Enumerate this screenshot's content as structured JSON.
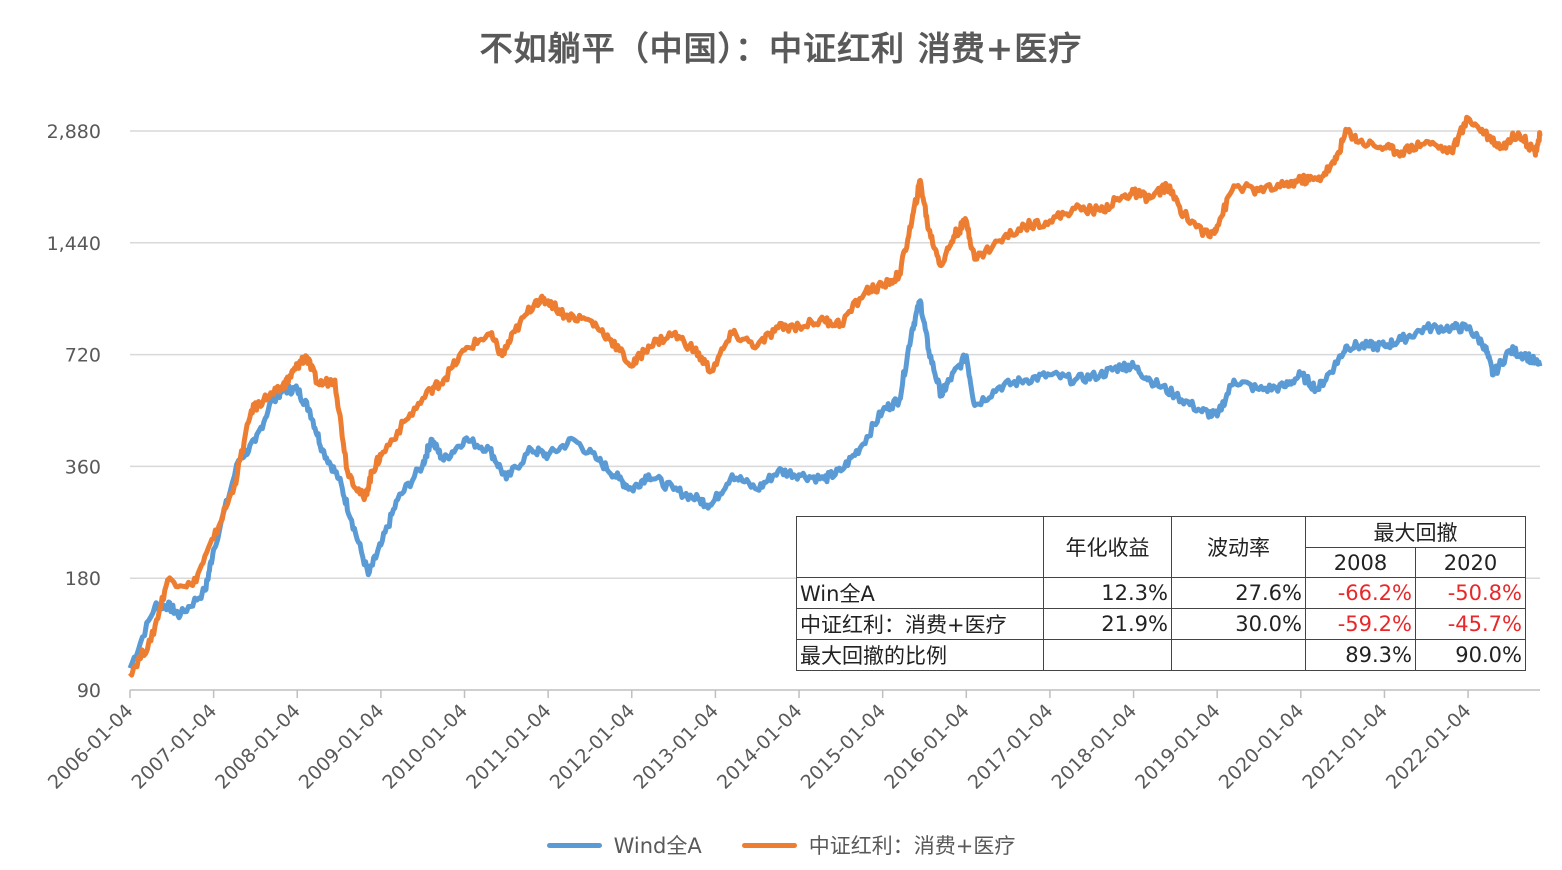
{
  "chart_data": {
    "type": "line",
    "title": "不如躺平（中国）：中证红利 消费+医疗",
    "y_scale": "log2",
    "ylim": [
      90,
      2880
    ],
    "yticks": [
      90,
      180,
      360,
      720,
      1440,
      2880
    ],
    "ytick_labels": [
      "90",
      "180",
      "360",
      "720",
      "1,440",
      "2,880"
    ],
    "xlim": [
      2006.0,
      2022.86
    ],
    "xticks": [
      2006,
      2007,
      2008,
      2009,
      2010,
      2011,
      2012,
      2013,
      2014,
      2015,
      2016,
      2017,
      2018,
      2019,
      2020,
      2021,
      2022
    ],
    "xtick_labels": [
      "2006-01-04",
      "2007-01-04",
      "2008-01-04",
      "2009-01-04",
      "2010-01-04",
      "2011-01-04",
      "2012-01-04",
      "2013-01-04",
      "2014-01-04",
      "2015-01-04",
      "2016-01-04",
      "2017-01-04",
      "2018-01-04",
      "2019-01-04",
      "2020-01-04",
      "2021-01-04",
      "2022-01-04"
    ],
    "grid": true,
    "legend_position": "bottom",
    "series": [
      {
        "name": "Wind全A",
        "color": "#5b9bd5",
        "x": [
          2006.0,
          2006.3,
          2006.45,
          2006.6,
          2006.9,
          2007.0,
          2007.3,
          2007.5,
          2007.7,
          2007.85,
          2008.0,
          2008.15,
          2008.3,
          2008.5,
          2008.65,
          2008.85,
          2009.0,
          2009.2,
          2009.5,
          2009.6,
          2009.75,
          2010.0,
          2010.3,
          2010.5,
          2010.8,
          2011.0,
          2011.3,
          2011.6,
          2011.85,
          2012.0,
          2012.2,
          2012.5,
          2012.8,
          2012.95,
          2013.2,
          2013.5,
          2013.75,
          2014.0,
          2014.3,
          2014.5,
          2014.75,
          2015.0,
          2015.2,
          2015.35,
          2015.45,
          2015.55,
          2015.7,
          2015.8,
          2016.0,
          2016.1,
          2016.4,
          2016.7,
          2017.0,
          2017.3,
          2017.6,
          2017.85,
          2018.0,
          2018.2,
          2018.5,
          2018.8,
          2019.0,
          2019.2,
          2019.5,
          2019.8,
          2020.0,
          2020.2,
          2020.4,
          2020.55,
          2020.8,
          2021.0,
          2021.2,
          2021.5,
          2021.8,
          2022.0,
          2022.2,
          2022.3,
          2022.5,
          2022.7,
          2022.86
        ],
        "values": [
          103,
          152,
          152,
          143,
          167,
          215,
          374,
          420,
          545,
          580,
          580,
          509,
          400,
          333,
          258,
          184,
          221,
          293,
          363,
          426,
          374,
          426,
          400,
          333,
          400,
          385,
          426,
          374,
          333,
          312,
          342,
          312,
          293,
          283,
          342,
          312,
          350,
          342,
          333,
          350,
          410,
          509,
          545,
          838,
          1005,
          740,
          560,
          615,
          715,
          525,
          590,
          615,
          635,
          615,
          635,
          670,
          670,
          615,
          560,
          509,
          492,
          615,
          580,
          590,
          635,
          580,
          670,
          760,
          760,
          760,
          790,
          850,
          850,
          850,
          760,
          635,
          740,
          715,
          670
        ]
      },
      {
        "name": "中证红利：消费+医疗",
        "color": "#ed7d31",
        "x": [
          2006.0,
          2006.25,
          2006.45,
          2006.75,
          2007.0,
          2007.25,
          2007.45,
          2007.6,
          2007.8,
          2007.9,
          2008.0,
          2008.1,
          2008.25,
          2008.45,
          2008.6,
          2008.8,
          2008.9,
          2009.0,
          2009.3,
          2009.6,
          2009.75,
          2010.0,
          2010.3,
          2010.45,
          2010.6,
          2010.85,
          2011.0,
          2011.2,
          2011.5,
          2011.75,
          2012.0,
          2012.2,
          2012.5,
          2012.75,
          2012.95,
          2013.2,
          2013.5,
          2013.75,
          2014.0,
          2014.3,
          2014.5,
          2014.8,
          2015.0,
          2015.2,
          2015.35,
          2015.45,
          2015.55,
          2015.7,
          2015.85,
          2016.0,
          2016.1,
          2016.4,
          2016.7,
          2017.0,
          2017.3,
          2017.6,
          2017.85,
          2018.0,
          2018.2,
          2018.4,
          2018.6,
          2018.9,
          2019.0,
          2019.2,
          2019.5,
          2019.8,
          2020.0,
          2020.2,
          2020.4,
          2020.55,
          2020.7,
          2021.0,
          2021.2,
          2021.5,
          2021.8,
          2022.0,
          2022.2,
          2022.4,
          2022.6,
          2022.8,
          2022.86
        ],
        "values": [
          100,
          122,
          178,
          172,
          230,
          320,
          509,
          545,
          580,
          620,
          670,
          715,
          600,
          615,
          350,
          293,
          350,
          385,
          480,
          580,
          615,
          740,
          820,
          715,
          830,
          1005,
          1005,
          920,
          890,
          790,
          670,
          760,
          820,
          740,
          650,
          820,
          760,
          850,
          860,
          890,
          870,
          1070,
          1100,
          1180,
          1650,
          2120,
          1560,
          1250,
          1500,
          1650,
          1300,
          1460,
          1600,
          1650,
          1780,
          1760,
          1900,
          1960,
          1900,
          2050,
          1720,
          1500,
          1600,
          2050,
          1990,
          2050,
          2130,
          2130,
          2360,
          2890,
          2700,
          2600,
          2530,
          2700,
          2530,
          3120,
          2850,
          2600,
          2850,
          2530,
          2790
        ]
      }
    ]
  },
  "table": {
    "headers": {
      "annual_return": "年化收益",
      "volatility": "波动率",
      "max_drawdown": "最大回撤",
      "y2008": "2008",
      "y2020": "2020"
    },
    "rows": [
      {
        "name": "Win全A",
        "annual_return": "12.3%",
        "volatility": "27.6%",
        "dd2008": "-66.2%",
        "dd2020": "-50.8%"
      },
      {
        "name": "中证红利：消费+医疗",
        "annual_return": "21.9%",
        "volatility": "30.0%",
        "dd2008": "-59.2%",
        "dd2020": "-45.7%"
      },
      {
        "name": "最大回撤的比例",
        "annual_return": "",
        "volatility": "",
        "dd2008": "89.3%",
        "dd2020": "90.0%"
      }
    ]
  },
  "colors": {
    "negative": "#e8282a",
    "grid": "#d9d9d9"
  }
}
